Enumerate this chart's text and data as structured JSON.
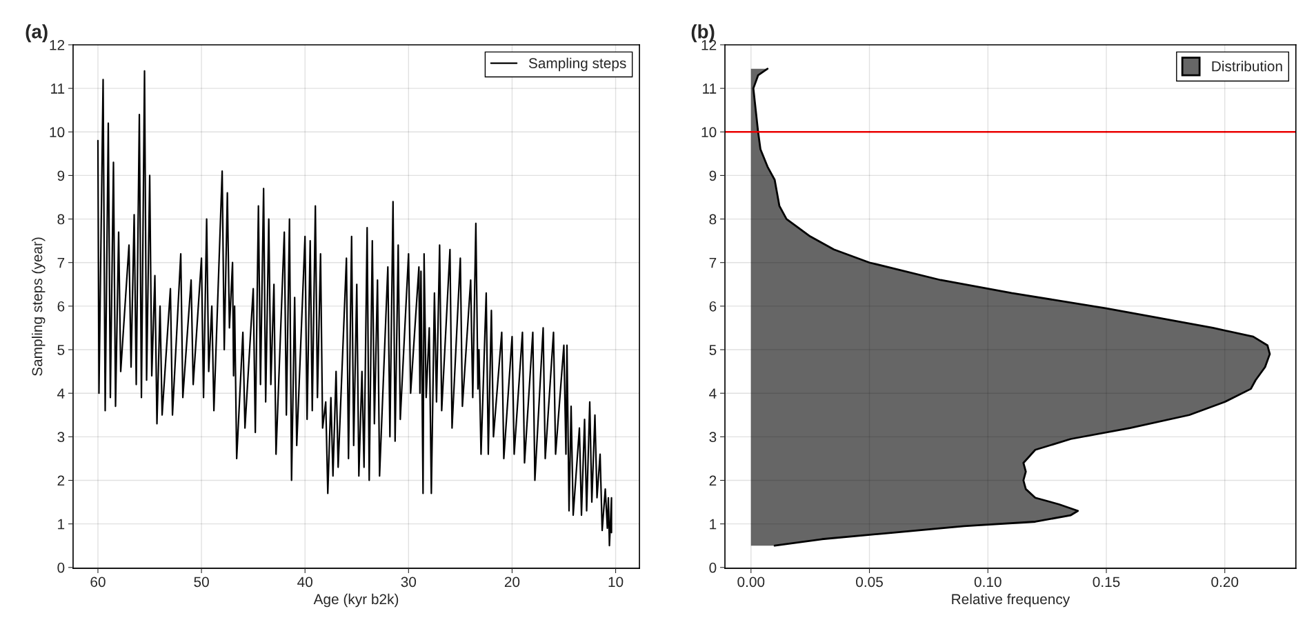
{
  "chart_data": [
    {
      "type": "line",
      "title": "(a)",
      "xlabel": "Age (kyr b2k)",
      "ylabel": "Sampling steps (year)",
      "xlim": [
        62.4,
        7.7
      ],
      "ylim": [
        -0.02,
        12
      ],
      "xticks": [
        60,
        50,
        40,
        30,
        20,
        10
      ],
      "yticks": [
        0,
        1,
        2,
        3,
        4,
        5,
        6,
        7,
        8,
        9,
        10,
        11,
        12
      ],
      "grid": true,
      "legend": "top right",
      "series": [
        {
          "name": "Sampling steps",
          "color": "#000000",
          "x": [
            60,
            59.9,
            59.5,
            59.3,
            59,
            58.8,
            58.5,
            58.3,
            58,
            57.8,
            57,
            56.8,
            56.5,
            56.3,
            56,
            55.8,
            55.5,
            55.3,
            55,
            54.8,
            54.5,
            54.3,
            54,
            53.8,
            53,
            52.8,
            52,
            51.8,
            51,
            50.8,
            50,
            49.8,
            49.5,
            49.3,
            49,
            48.8,
            48,
            47.8,
            47.5,
            47.3,
            47,
            46.9,
            46.8,
            46.6,
            46,
            45.8,
            45,
            44.8,
            44.5,
            44.3,
            44,
            43.8,
            43.5,
            43.3,
            43,
            42.8,
            42,
            41.8,
            41.5,
            41.3,
            41,
            40.8,
            40,
            39.8,
            39.5,
            39.3,
            39,
            38.8,
            38.5,
            38.3,
            38,
            37.8,
            37.5,
            37.3,
            37,
            36.8,
            36,
            35.8,
            35.5,
            35.3,
            35,
            34.8,
            34.5,
            34.3,
            34,
            33.8,
            33.5,
            33.3,
            33,
            32.8,
            32,
            31.8,
            31.5,
            31.3,
            31,
            30.8,
            30,
            29.8,
            29,
            28.9,
            28.8,
            28.6,
            28.5,
            28.3,
            28,
            27.8,
            27.5,
            27.3,
            27,
            26.8,
            26,
            25.8,
            25,
            24.8,
            24,
            23.8,
            23.5,
            23.3,
            23.2,
            23,
            22.5,
            22.3,
            22,
            21.8,
            21,
            20.8,
            20,
            19.8,
            19,
            18.8,
            18,
            17.8,
            17,
            16.8,
            16,
            15.8,
            15,
            14.8,
            14.7,
            14.5,
            14.3,
            14.1,
            13.5,
            13.3,
            13,
            12.8,
            12.5,
            12.3,
            12,
            11.8,
            11.5,
            11.3,
            11,
            10.8,
            10.7,
            10.6,
            10.4,
            10.4
          ],
          "values": [
            9.8,
            4.0,
            11.2,
            3.6,
            10.2,
            3.9,
            9.3,
            3.7,
            7.7,
            4.5,
            7.4,
            4.6,
            8.1,
            4.2,
            10.4,
            3.9,
            11.4,
            4.3,
            9.0,
            4.4,
            6.7,
            3.3,
            6.0,
            3.5,
            6.4,
            3.5,
            7.2,
            3.9,
            6.6,
            4.2,
            7.1,
            3.9,
            8.0,
            4.5,
            6.0,
            3.6,
            9.1,
            5.0,
            8.6,
            5.5,
            7.0,
            4.4,
            6.0,
            2.5,
            5.4,
            3.2,
            6.4,
            3.1,
            8.3,
            4.2,
            8.7,
            3.8,
            8.0,
            4.2,
            6.5,
            2.6,
            7.7,
            3.5,
            8.0,
            2.0,
            6.2,
            2.8,
            7.6,
            3.4,
            7.5,
            3.6,
            8.3,
            3.9,
            7.2,
            3.2,
            3.8,
            1.7,
            3.9,
            2.1,
            4.5,
            2.3,
            7.1,
            2.5,
            7.6,
            2.8,
            6.5,
            2.1,
            4.5,
            2.3,
            7.8,
            2.0,
            7.5,
            3.3,
            6.6,
            2.1,
            6.9,
            3.0,
            8.4,
            2.9,
            7.4,
            3.4,
            7.2,
            4.0,
            6.9,
            4.0,
            6.8,
            1.7,
            7.2,
            3.9,
            5.5,
            1.7,
            6.3,
            3.8,
            7.4,
            3.6,
            7.3,
            3.2,
            7.1,
            3.7,
            6.6,
            3.9,
            7.9,
            4.1,
            5.0,
            2.6,
            6.3,
            2.6,
            5.9,
            3.0,
            5.4,
            2.5,
            5.3,
            2.6,
            5.4,
            2.4,
            5.4,
            2.0,
            5.5,
            2.5,
            5.4,
            2.6,
            5.1,
            2.6,
            5.1,
            1.3,
            3.7,
            1.2,
            3.2,
            1.2,
            3.4,
            1.3,
            3.8,
            1.5,
            3.5,
            1.6,
            2.6,
            0.85,
            1.8,
            0.9,
            1.6,
            0.5,
            1.6,
            0.8
          ]
        }
      ]
    },
    {
      "type": "area",
      "orientation": "horizontal",
      "title": "(b)",
      "xlabel": "Relative frequency",
      "xlim": [
        -0.011,
        0.23
      ],
      "ylim": [
        -0.02,
        12
      ],
      "xticks": [
        {
          "value": 0,
          "label": "0.00"
        },
        {
          "value": 0.05,
          "label": "0.05"
        },
        {
          "value": 0.1,
          "label": "0.10"
        },
        {
          "value": 0.15,
          "label": "0.15"
        },
        {
          "value": 0.2,
          "label": "0.20"
        }
      ],
      "yticks": [
        0,
        1,
        2,
        3,
        4,
        5,
        6,
        7,
        8,
        9,
        10,
        11,
        12
      ],
      "grid": true,
      "legend": "top right",
      "ref_lines": [
        {
          "axis": "y",
          "value": 10,
          "color": "#ff0000"
        }
      ],
      "series": [
        {
          "name": "Distribution",
          "color": "#666666",
          "x": [
            0.5,
            0.65,
            0.8,
            0.95,
            1.05,
            1.2,
            1.3,
            1.45,
            1.6,
            1.8,
            2.0,
            2.2,
            2.4,
            2.7,
            2.95,
            3.2,
            3.5,
            3.8,
            4.1,
            4.3,
            4.6,
            4.9,
            5.1,
            5.3,
            5.5,
            5.75,
            5.95,
            6.3,
            6.6,
            7.0,
            7.3,
            7.6,
            8.0,
            8.3,
            8.6,
            8.9,
            9.2,
            9.6,
            10.0,
            10.5,
            11.0,
            11.3,
            11.45
          ],
          "values": [
            0.01,
            0.03,
            0.06,
            0.09,
            0.12,
            0.135,
            0.138,
            0.13,
            0.12,
            0.116,
            0.115,
            0.116,
            0.115,
            0.12,
            0.135,
            0.16,
            0.185,
            0.2,
            0.211,
            0.213,
            0.217,
            0.219,
            0.218,
            0.212,
            0.195,
            0.17,
            0.15,
            0.11,
            0.08,
            0.05,
            0.035,
            0.025,
            0.015,
            0.012,
            0.011,
            0.01,
            0.007,
            0.004,
            0.003,
            0.002,
            0.001,
            0.003,
            0.007
          ]
        }
      ]
    }
  ]
}
